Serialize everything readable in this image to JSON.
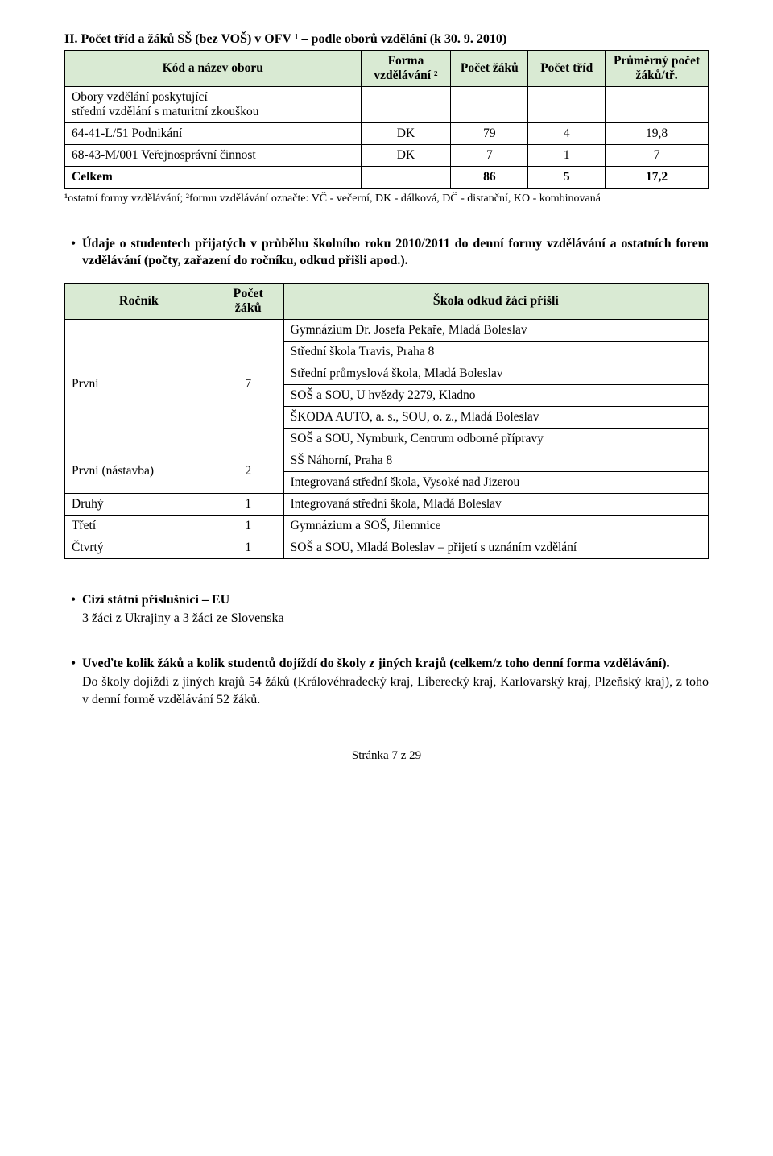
{
  "section_title": "II. Počet tříd a žáků SŠ (bez VOŠ) v OFV ¹ – podle oborů vzdělání (k 30. 9. 2010)",
  "table1": {
    "headers": {
      "kod": "Kód a název oboru",
      "forma": "Forma vzdělávání ²",
      "zaku": "Počet žáků",
      "trid": "Počet tříd",
      "prumer": "Průměrný počet žáků/tř."
    },
    "obory_label": "Obory vzdělání poskytující\nstřední vzdělání s maturitní zkouškou",
    "rows": [
      {
        "kod": "64-41-L/51  Podnikání",
        "forma": "DK",
        "zaku": "79",
        "trid": "4",
        "prumer": "19,8"
      },
      {
        "kod": "68-43-M/001 Veřejnosprávní činnost",
        "forma": "DK",
        "zaku": "7",
        "trid": "1",
        "prumer": "7"
      }
    ],
    "total": {
      "label": "Celkem",
      "zaku": "86",
      "trid": "5",
      "prumer": "17,2"
    }
  },
  "footnote": "¹ostatní formy vzdělávání; ²formu vzdělávání označte: VČ - večerní,  DK - dálková,  DČ - distanční, KO - kombinovaná",
  "bullet1": "Údaje o studentech přijatých v průběhu školního roku 2010/2011 do denní formy vzdělávání a ostatních forem vzdělávání (počty, zařazení do ročníku, odkud přišli apod.).",
  "table2": {
    "headers": {
      "rocnik": "Ročník",
      "pocet": "Počet žáků",
      "skola": "Škola odkud žáci přišli"
    },
    "groups": [
      {
        "rocnik": "První",
        "pocet": "7",
        "schools": [
          "Gymnázium Dr. Josefa Pekaře, Mladá Boleslav",
          "Střední škola Travis, Praha 8",
          "Střední průmyslová škola, Mladá Boleslav",
          "SOŠ a SOU, U hvězdy 2279, Kladno",
          "ŠKODA AUTO, a. s., SOU, o. z., Mladá Boleslav",
          "SOŠ a SOU, Nymburk, Centrum odborné přípravy"
        ]
      },
      {
        "rocnik": "První (nástavba)",
        "pocet": "2",
        "schools": [
          "SŠ Náhorní, Praha 8",
          "Integrovaná střední škola, Vysoké nad Jizerou"
        ]
      },
      {
        "rocnik": "Druhý",
        "pocet": "1",
        "schools": [
          "Integrovaná střední škola, Mladá Boleslav"
        ]
      },
      {
        "rocnik": "Třetí",
        "pocet": "1",
        "schools": [
          "Gymnázium a SOŠ, Jilemnice"
        ]
      },
      {
        "rocnik": "Čtvrtý",
        "pocet": "1",
        "schools": [
          "SOŠ a SOU, Mladá Boleslav – přijetí s uznáním vzdělání"
        ]
      }
    ]
  },
  "bullet2_title": "Cizí státní příslušníci – EU",
  "bullet2_text": "3 žáci z Ukrajiny a 3 žáci ze Slovenska",
  "bullet3_title": "Uveďte kolik žáků a kolik studentů dojíždí do školy z jiných krajů (celkem/z toho denní forma vzdělávání).",
  "bullet3_text": "Do školy dojíždí z jiných krajů 54 žáků (Královéhradecký kraj, Liberecký kraj, Karlovarský kraj, Plzeňský kraj), z toho v denní formě vzdělávání 52 žáků.",
  "page_number": "Stránka 7 z 29",
  "colors": {
    "header_bg": "#d9ead3",
    "border": "#000000",
    "text": "#000000",
    "bg": "#ffffff"
  },
  "col_widths": {
    "t1": [
      "46%",
      "14%",
      "12%",
      "12%",
      "16%"
    ],
    "t2": [
      "23%",
      "11%",
      "66%"
    ]
  }
}
